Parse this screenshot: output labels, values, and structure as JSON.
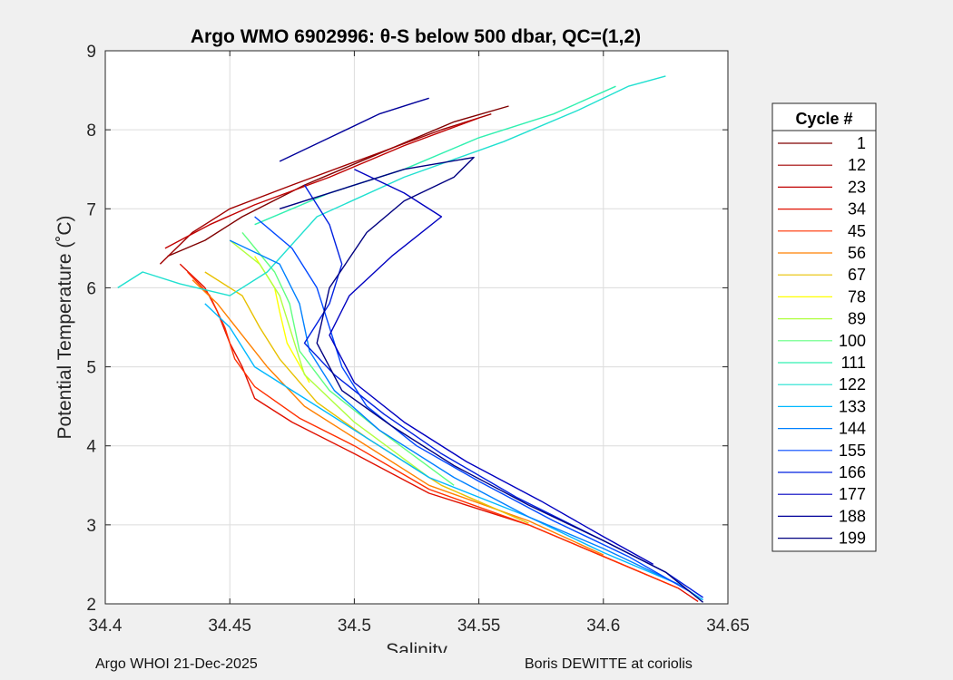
{
  "chart_data": {
    "type": "line",
    "title": "Argo WMO 6902996: θ-S below 500 dbar,  QC=(1,2)",
    "xlabel": "Salinity",
    "ylabel": "Potential Temperature (˚C)",
    "xlim": [
      34.4,
      34.65
    ],
    "ylim": [
      2,
      9
    ],
    "xticks": [
      34.4,
      34.45,
      34.5,
      34.55,
      34.6,
      34.65
    ],
    "xtick_labels": [
      "34.4",
      "34.45",
      "34.5",
      "34.55",
      "34.6",
      "34.65"
    ],
    "yticks": [
      2,
      3,
      4,
      5,
      6,
      7,
      8,
      9
    ],
    "ytick_labels": [
      "2",
      "3",
      "4",
      "5",
      "6",
      "7",
      "8",
      "9"
    ],
    "grid": true,
    "legend": {
      "title": "Cycle #",
      "placement": "right, outside",
      "entries": [
        {
          "label": "1",
          "color": "#800000"
        },
        {
          "label": "12",
          "color": "#a00000"
        },
        {
          "label": "23",
          "color": "#c00000"
        },
        {
          "label": "34",
          "color": "#e01000"
        },
        {
          "label": "45",
          "color": "#ff3000"
        },
        {
          "label": "56",
          "color": "#ff8000"
        },
        {
          "label": "67",
          "color": "#e8c000"
        },
        {
          "label": "78",
          "color": "#ffff00"
        },
        {
          "label": "89",
          "color": "#b0ff40"
        },
        {
          "label": "100",
          "color": "#60ff80"
        },
        {
          "label": "111",
          "color": "#30f0b0"
        },
        {
          "label": "122",
          "color": "#20e0d0"
        },
        {
          "label": "133",
          "color": "#00b8ff"
        },
        {
          "label": "144",
          "color": "#0080ff"
        },
        {
          "label": "155",
          "color": "#0048ff"
        },
        {
          "label": "166",
          "color": "#0020e0"
        },
        {
          "label": "177",
          "color": "#0000c0"
        },
        {
          "label": "188",
          "color": "#00009a"
        },
        {
          "label": "199",
          "color": "#000080"
        }
      ]
    },
    "series": [
      {
        "name": "1",
        "color": "#800000",
        "points": [
          [
            34.425,
            6.4
          ],
          [
            34.44,
            6.6
          ],
          [
            34.455,
            6.9
          ],
          [
            34.48,
            7.3
          ],
          [
            34.51,
            7.7
          ],
          [
            34.54,
            8.1
          ],
          [
            34.562,
            8.3
          ]
        ]
      },
      {
        "name": "12",
        "color": "#a00000",
        "points": [
          [
            34.422,
            6.3
          ],
          [
            34.435,
            6.7
          ],
          [
            34.45,
            7.0
          ],
          [
            34.475,
            7.3
          ],
          [
            34.505,
            7.65
          ],
          [
            34.535,
            8.0
          ],
          [
            34.555,
            8.2
          ]
        ]
      },
      {
        "name": "23",
        "color": "#c00000",
        "points": [
          [
            34.424,
            6.5
          ],
          [
            34.442,
            6.8
          ],
          [
            34.46,
            7.05
          ],
          [
            34.49,
            7.4
          ],
          [
            34.52,
            7.8
          ],
          [
            34.55,
            8.15
          ]
        ]
      },
      {
        "name": "34",
        "color": "#e01000",
        "points": [
          [
            34.43,
            6.3
          ],
          [
            34.44,
            6.0
          ],
          [
            34.445,
            5.7
          ],
          [
            34.45,
            5.3
          ],
          [
            34.455,
            5.0
          ],
          [
            34.46,
            4.6
          ],
          [
            34.475,
            4.3
          ],
          [
            34.5,
            3.9
          ],
          [
            34.53,
            3.4
          ],
          [
            34.57,
            3.0
          ],
          [
            34.6,
            2.6
          ],
          [
            34.63,
            2.2
          ],
          [
            34.638,
            2.03
          ]
        ]
      },
      {
        "name": "45",
        "color": "#ff3000",
        "points": [
          [
            34.433,
            6.2
          ],
          [
            34.442,
            5.9
          ],
          [
            34.448,
            5.5
          ],
          [
            34.452,
            5.1
          ],
          [
            34.46,
            4.75
          ],
          [
            34.478,
            4.35
          ],
          [
            34.5,
            4.0
          ],
          [
            34.53,
            3.45
          ],
          [
            34.57,
            3.0
          ],
          [
            34.6,
            2.6
          ],
          [
            34.63,
            2.2
          ]
        ]
      },
      {
        "name": "56",
        "color": "#ff8000",
        "points": [
          [
            34.435,
            6.1
          ],
          [
            34.445,
            5.8
          ],
          [
            34.455,
            5.4
          ],
          [
            34.465,
            5.0
          ],
          [
            34.48,
            4.5
          ],
          [
            34.5,
            4.1
          ],
          [
            34.53,
            3.5
          ],
          [
            34.57,
            3.05
          ],
          [
            34.6,
            2.62
          ]
        ]
      },
      {
        "name": "67",
        "color": "#e8c000",
        "points": [
          [
            34.44,
            6.2
          ],
          [
            34.455,
            5.9
          ],
          [
            34.462,
            5.5
          ],
          [
            34.47,
            5.1
          ],
          [
            34.485,
            4.55
          ],
          [
            34.505,
            4.1
          ],
          [
            34.535,
            3.5
          ],
          [
            34.57,
            3.02
          ]
        ]
      },
      {
        "name": "78",
        "color": "#ffff00",
        "points": [
          [
            34.46,
            6.4
          ],
          [
            34.468,
            6.0
          ],
          [
            34.47,
            5.7
          ],
          [
            34.473,
            5.3
          ],
          [
            34.482,
            4.8
          ]
        ]
      },
      {
        "name": "89",
        "color": "#b0ff40",
        "points": [
          [
            34.45,
            6.6
          ],
          [
            34.462,
            6.3
          ],
          [
            34.47,
            5.9
          ],
          [
            34.475,
            5.4
          ],
          [
            34.48,
            4.9
          ],
          [
            34.5,
            4.3
          ],
          [
            34.53,
            3.6
          ]
        ]
      },
      {
        "name": "100",
        "color": "#60ff80",
        "points": [
          [
            34.455,
            6.7
          ],
          [
            34.468,
            6.2
          ],
          [
            34.474,
            5.8
          ],
          [
            34.478,
            5.2
          ],
          [
            34.49,
            4.7
          ],
          [
            34.51,
            4.2
          ],
          [
            34.54,
            3.5
          ]
        ]
      },
      {
        "name": "111",
        "color": "#30f0b0",
        "points": [
          [
            34.46,
            6.8
          ],
          [
            34.49,
            7.2
          ],
          [
            34.52,
            7.5
          ],
          [
            34.55,
            7.9
          ],
          [
            34.58,
            8.2
          ],
          [
            34.605,
            8.55
          ]
        ]
      },
      {
        "name": "122",
        "color": "#20e0d0",
        "points": [
          [
            34.405,
            6.0
          ],
          [
            34.415,
            6.2
          ],
          [
            34.43,
            6.05
          ],
          [
            34.45,
            5.9
          ],
          [
            34.465,
            6.2
          ],
          [
            34.485,
            6.9
          ],
          [
            34.52,
            7.4
          ],
          [
            34.56,
            7.85
          ],
          [
            34.59,
            8.25
          ],
          [
            34.61,
            8.55
          ],
          [
            34.625,
            8.68
          ]
        ]
      },
      {
        "name": "133",
        "color": "#00b8ff",
        "points": [
          [
            34.44,
            5.8
          ],
          [
            34.45,
            5.5
          ],
          [
            34.46,
            5.0
          ],
          [
            34.48,
            4.6
          ],
          [
            34.5,
            4.2
          ],
          [
            34.53,
            3.6
          ],
          [
            34.57,
            3.1
          ],
          [
            34.6,
            2.65
          ],
          [
            34.63,
            2.25
          ],
          [
            34.64,
            2.05
          ]
        ]
      },
      {
        "name": "144",
        "color": "#0080ff",
        "points": [
          [
            34.45,
            6.6
          ],
          [
            34.47,
            6.3
          ],
          [
            34.478,
            5.8
          ],
          [
            34.482,
            5.2
          ],
          [
            34.492,
            4.7
          ],
          [
            34.51,
            4.2
          ],
          [
            34.54,
            3.6
          ],
          [
            34.57,
            3.1
          ],
          [
            34.6,
            2.7
          ],
          [
            34.63,
            2.25
          ]
        ]
      },
      {
        "name": "155",
        "color": "#0048ff",
        "points": [
          [
            34.46,
            6.9
          ],
          [
            34.475,
            6.5
          ],
          [
            34.485,
            6.0
          ],
          [
            34.49,
            5.5
          ],
          [
            34.495,
            5.0
          ],
          [
            34.505,
            4.5
          ],
          [
            34.525,
            4.0
          ],
          [
            34.55,
            3.55
          ],
          [
            34.58,
            3.05
          ],
          [
            34.61,
            2.6
          ],
          [
            34.635,
            2.15
          ]
        ]
      },
      {
        "name": "166",
        "color": "#0020e0",
        "points": [
          [
            34.48,
            7.3
          ],
          [
            34.49,
            6.8
          ],
          [
            34.495,
            6.3
          ],
          [
            34.49,
            5.8
          ],
          [
            34.48,
            5.3
          ],
          [
            34.492,
            4.9
          ],
          [
            34.512,
            4.4
          ],
          [
            34.535,
            3.9
          ],
          [
            34.565,
            3.35
          ],
          [
            34.6,
            2.8
          ],
          [
            34.625,
            2.4
          ],
          [
            34.64,
            2.08
          ]
        ]
      },
      {
        "name": "177",
        "color": "#0000c0",
        "points": [
          [
            34.5,
            7.5
          ],
          [
            34.52,
            7.2
          ],
          [
            34.535,
            6.9
          ],
          [
            34.515,
            6.4
          ],
          [
            34.498,
            5.9
          ],
          [
            34.49,
            5.4
          ],
          [
            34.5,
            4.8
          ],
          [
            34.52,
            4.3
          ],
          [
            34.545,
            3.8
          ],
          [
            34.575,
            3.3
          ],
          [
            34.6,
            2.85
          ],
          [
            34.62,
            2.5
          ]
        ]
      },
      {
        "name": "188",
        "color": "#00009a",
        "points": [
          [
            34.47,
            7.6
          ],
          [
            34.49,
            7.9
          ],
          [
            34.51,
            8.2
          ],
          [
            34.525,
            8.35
          ],
          [
            34.53,
            8.4
          ]
        ]
      },
      {
        "name": "199",
        "color": "#000080",
        "points": [
          [
            34.47,
            7.0
          ],
          [
            34.49,
            7.2
          ],
          [
            34.52,
            7.5
          ],
          [
            34.548,
            7.65
          ],
          [
            34.54,
            7.4
          ],
          [
            34.52,
            7.1
          ],
          [
            34.505,
            6.7
          ],
          [
            34.49,
            6.0
          ],
          [
            34.485,
            5.3
          ],
          [
            34.495,
            4.7
          ],
          [
            34.515,
            4.25
          ],
          [
            34.54,
            3.75
          ],
          [
            34.57,
            3.25
          ],
          [
            34.6,
            2.8
          ],
          [
            34.625,
            2.4
          ],
          [
            34.64,
            2.02
          ]
        ]
      }
    ]
  },
  "footer": {
    "left": "Argo WHOI 21-Dec-2025",
    "right": "Boris DEWITTE at coriolis"
  }
}
